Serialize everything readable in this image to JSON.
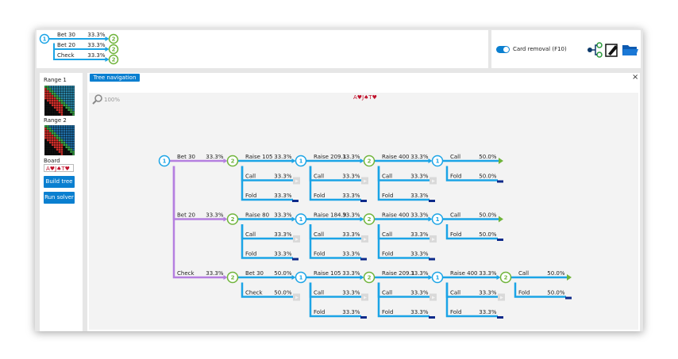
{
  "mini_tree": {
    "label": "1",
    "children": [
      {
        "action": "Bet 30",
        "pct": "33.3%",
        "node": {
          "label": "2"
        }
      },
      {
        "action": "Bet 20",
        "pct": "33.3%",
        "node": {
          "label": "2"
        }
      },
      {
        "action": "Check",
        "pct": "33.3%",
        "node": {
          "label": "2"
        }
      }
    ]
  },
  "toggle_label": "Card removal (F10)",
  "sidebar": {
    "range1": "Range 1",
    "range2": "Range 2",
    "board_label": "Board",
    "board": "A♥J♠T♥",
    "buttons": [
      "Build tree",
      "Run solver"
    ]
  },
  "tab": "Tree navigation",
  "zoom": "100%",
  "board_display": "A♥J♠T♥",
  "colors": {
    "edge": "#1ba4e6",
    "root_edge": "#b57fe0",
    "player1": "#1ba4e6",
    "player2": "#6fb43a",
    "fold": "#0d2a8a",
    "street": "#d9d9d9"
  },
  "tree": {
    "label": "1",
    "children": [
      {
        "action": "Bet 30",
        "pct": "33.3%",
        "node": {
          "label": "2",
          "children": [
            {
              "action": "Raise 105",
              "pct": "33.3%",
              "node": {
                "label": "1",
                "children": [
                  {
                    "action": "Raise 209.1",
                    "pct": "33.3%",
                    "node": {
                      "label": "2",
                      "children": [
                        {
                          "action": "Raise 400",
                          "pct": "33.3%",
                          "node": {
                            "label": "1",
                            "children": [
                              {
                                "action": "Call",
                                "pct": "50.0%",
                                "end": "showdown"
                              },
                              {
                                "action": "Fold",
                                "pct": "50.0%",
                                "end": "fold"
                              }
                            ]
                          }
                        },
                        {
                          "action": "Call",
                          "pct": "33.3%",
                          "end": "street"
                        },
                        {
                          "action": "Fold",
                          "pct": "33.3%",
                          "end": "fold"
                        }
                      ]
                    }
                  },
                  {
                    "action": "Call",
                    "pct": "33.3%",
                    "end": "street"
                  },
                  {
                    "action": "Fold",
                    "pct": "33.3%",
                    "end": "fold"
                  }
                ]
              }
            },
            {
              "action": "Call",
              "pct": "33.3%",
              "end": "street"
            },
            {
              "action": "Fold",
              "pct": "33.3%",
              "end": "fold"
            }
          ]
        }
      },
      {
        "action": "Bet 20",
        "pct": "33.3%",
        "node": {
          "label": "2",
          "children": [
            {
              "action": "Raise 80",
              "pct": "33.3%",
              "node": {
                "label": "1",
                "children": [
                  {
                    "action": "Raise 184.9",
                    "pct": "33.3%",
                    "node": {
                      "label": "2",
                      "children": [
                        {
                          "action": "Raise 400",
                          "pct": "33.3%",
                          "node": {
                            "label": "1",
                            "children": [
                              {
                                "action": "Call",
                                "pct": "50.0%",
                                "end": "showdown"
                              },
                              {
                                "action": "Fold",
                                "pct": "50.0%",
                                "end": "fold"
                              }
                            ]
                          }
                        },
                        {
                          "action": "Call",
                          "pct": "33.3%",
                          "end": "street"
                        },
                        {
                          "action": "Fold",
                          "pct": "33.3%",
                          "end": "fold"
                        }
                      ]
                    }
                  },
                  {
                    "action": "Call",
                    "pct": "33.3%",
                    "end": "street"
                  },
                  {
                    "action": "Fold",
                    "pct": "33.3%",
                    "end": "fold"
                  }
                ]
              }
            },
            {
              "action": "Call",
              "pct": "33.3%",
              "end": "street"
            },
            {
              "action": "Fold",
              "pct": "33.3%",
              "end": "fold"
            }
          ]
        }
      },
      {
        "action": "Check",
        "pct": "33.3%",
        "node": {
          "label": "2",
          "children": [
            {
              "action": "Bet 30",
              "pct": "50.0%",
              "node": {
                "label": "1",
                "children": [
                  {
                    "action": "Raise 105",
                    "pct": "33.3%",
                    "node": {
                      "label": "2",
                      "children": [
                        {
                          "action": "Raise 209.1",
                          "pct": "33.3%",
                          "node": {
                            "label": "1",
                            "children": [
                              {
                                "action": "Raise 400",
                                "pct": "33.3%",
                                "node": {
                                  "label": "2",
                                  "children": [
                                    {
                                      "action": "Call",
                                      "pct": "50.0%",
                                      "end": "showdown"
                                    },
                                    {
                                      "action": "Fold",
                                      "pct": "50.0%",
                                      "end": "fold"
                                    }
                                  ]
                                }
                              },
                              {
                                "action": "Call",
                                "pct": "33.3%",
                                "end": "street"
                              },
                              {
                                "action": "Fold",
                                "pct": "33.3%",
                                "end": "fold"
                              }
                            ]
                          }
                        },
                        {
                          "action": "Call",
                          "pct": "33.3%",
                          "end": "street"
                        },
                        {
                          "action": "Fold",
                          "pct": "33.3%",
                          "end": "fold"
                        }
                      ]
                    }
                  },
                  {
                    "action": "Call",
                    "pct": "33.3%",
                    "end": "street"
                  },
                  {
                    "action": "Fold",
                    "pct": "33.3%",
                    "end": "fold"
                  }
                ]
              }
            },
            {
              "action": "Check",
              "pct": "50.0%",
              "end": "street"
            }
          ]
        }
      }
    ]
  }
}
